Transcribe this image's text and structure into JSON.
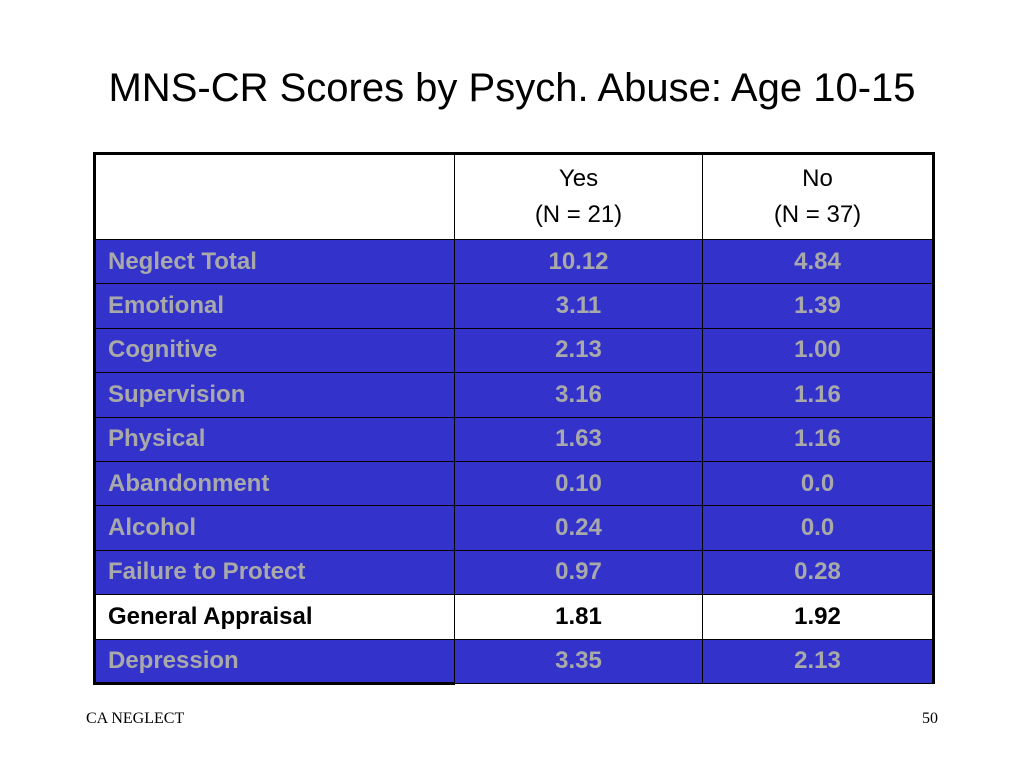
{
  "slide": {
    "title": "MNS-CR Scores by Psych. Abuse: Age 10-15",
    "footer_left": "CA NEGLECT",
    "page_number": "50"
  },
  "table": {
    "columns": [
      {
        "label": "",
        "line1": "",
        "line2": ""
      },
      {
        "line1": "Yes",
        "line2": "(N = 21)"
      },
      {
        "line1": "No",
        "line2": "(N = 37)"
      }
    ],
    "rows": [
      {
        "label": "Neglect Total",
        "yes": "10.12",
        "no": "4.84",
        "style": "blue"
      },
      {
        "label": "Emotional",
        "yes": "3.11",
        "no": "1.39",
        "style": "blue"
      },
      {
        "label": "Cognitive",
        "yes": "2.13",
        "no": "1.00",
        "style": "blue"
      },
      {
        "label": "Supervision",
        "yes": "3.16",
        "no": "1.16",
        "style": "blue"
      },
      {
        "label": "Physical",
        "yes": "1.63",
        "no": "1.16",
        "style": "blue"
      },
      {
        "label": "Abandonment",
        "yes": "0.10",
        "no": "0.0",
        "style": "blue"
      },
      {
        "label": "Alcohol",
        "yes": "0.24",
        "no": "0.0",
        "style": "blue"
      },
      {
        "label": "Failure to Protect",
        "yes": "0.97",
        "no": "0.28",
        "style": "blue"
      },
      {
        "label": "General Appraisal",
        "yes": "1.81",
        "no": "1.92",
        "style": "white"
      },
      {
        "label": "Depression",
        "yes": "3.35",
        "no": "2.13",
        "style": "blue"
      }
    ]
  },
  "colors": {
    "row_fill": "#3333cc",
    "row_text": "#a9a9a9",
    "highlight_fill": "#ffffff",
    "highlight_text": "#000000"
  }
}
